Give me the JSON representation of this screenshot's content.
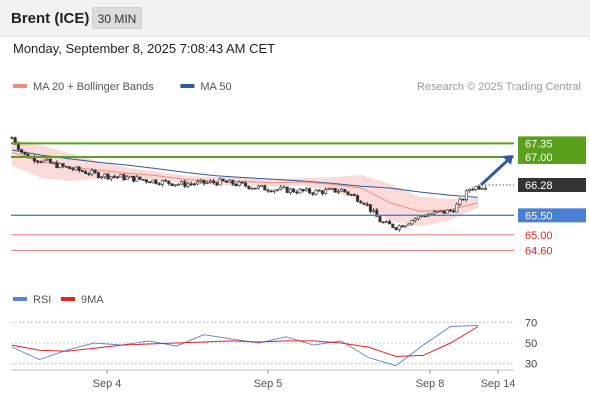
{
  "header": {
    "instrument": "Brent (ICE)",
    "timeframe": "30 MIN"
  },
  "timestamp": "Monday, September 8, 2025 7:08:43 AM CET",
  "price_legend": [
    {
      "label": "MA 20 + Bollinger Bands",
      "color": "#f28b82"
    },
    {
      "label": "MA 50",
      "color": "#2f5b9b"
    }
  ],
  "research_credit": "Research © 2025 Trading Central",
  "indicator_legend": [
    {
      "label": "RSI",
      "color": "#5b7fd6"
    },
    {
      "label": "9MA",
      "color": "#e0261f"
    }
  ],
  "colors": {
    "candle": "#333333",
    "bollinger_fill": "#fbdada",
    "green_level": "#5aa01a",
    "blue_level": "#4a7fd6",
    "red_level": "#e87c7c",
    "current_price_tag": "#333333",
    "arrow": "#2f5b9b"
  },
  "chart_data": [
    {
      "type": "line",
      "title": "Brent (ICE) 30 MIN",
      "x_ticks": [
        "Sep 4",
        "Sep 5",
        "Sep 8",
        "Sep 14"
      ],
      "ylim": [
        64.3,
        67.9
      ],
      "series": [
        {
          "name": "MA 50",
          "values": [
            67.18,
            67.05,
            66.95,
            66.86,
            66.79,
            66.7,
            66.6,
            66.52,
            66.47,
            66.43,
            66.38,
            66.32,
            66.25,
            66.2,
            66.1,
            66.02,
            65.96
          ]
        },
        {
          "name": "MA 20 + Bollinger Bands",
          "values": [
            67.12,
            66.88,
            66.74,
            66.66,
            66.58,
            66.52,
            66.42,
            66.38,
            66.37,
            66.34,
            66.36,
            66.3,
            66.2,
            65.82,
            65.6,
            65.64,
            65.82
          ]
        }
      ],
      "price_levels": [
        {
          "label": "67.35",
          "value": 67.35,
          "style": "resistance"
        },
        {
          "label": "67.00",
          "value": 67.0,
          "style": "resistance"
        },
        {
          "label": "66.28",
          "value": 66.28,
          "style": "last"
        },
        {
          "label": "65.50",
          "value": 65.5,
          "style": "pivot"
        },
        {
          "label": "65.00",
          "value": 65.0,
          "style": "support"
        },
        {
          "label": "64.60",
          "value": 64.6,
          "style": "support"
        }
      ]
    },
    {
      "type": "line",
      "title": "RSI",
      "ylim": [
        20,
        80
      ],
      "y_ticks": [
        "70",
        "50",
        "30"
      ],
      "series": [
        {
          "name": "RSI",
          "values": [
            46,
            34,
            43,
            50,
            48,
            52,
            47,
            58,
            54,
            50,
            56,
            48,
            52,
            36,
            28,
            48,
            66,
            67
          ]
        },
        {
          "name": "9MA",
          "values": [
            48,
            43,
            42,
            45,
            48,
            49,
            50,
            51,
            52,
            51,
            52,
            52,
            50,
            46,
            37,
            38,
            50,
            66
          ]
        }
      ]
    }
  ]
}
